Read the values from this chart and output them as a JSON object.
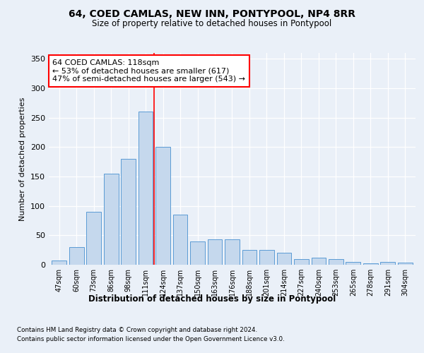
{
  "title1": "64, COED CAMLAS, NEW INN, PONTYPOOL, NP4 8RR",
  "title2": "Size of property relative to detached houses in Pontypool",
  "xlabel": "Distribution of detached houses by size in Pontypool",
  "ylabel": "Number of detached properties",
  "categories": [
    "47sqm",
    "60sqm",
    "73sqm",
    "86sqm",
    "98sqm",
    "111sqm",
    "124sqm",
    "137sqm",
    "150sqm",
    "163sqm",
    "176sqm",
    "188sqm",
    "201sqm",
    "214sqm",
    "227sqm",
    "240sqm",
    "253sqm",
    "265sqm",
    "278sqm",
    "291sqm",
    "304sqm"
  ],
  "values": [
    7,
    30,
    90,
    155,
    180,
    260,
    200,
    85,
    40,
    43,
    43,
    25,
    25,
    20,
    10,
    12,
    10,
    5,
    3,
    5,
    4
  ],
  "bar_color": "#c5d8ed",
  "bar_edge_color": "#5b9bd5",
  "vline_x_index": 5.5,
  "vline_color": "red",
  "annotation_text": "64 COED CAMLAS: 118sqm\n← 53% of detached houses are smaller (617)\n47% of semi-detached houses are larger (543) →",
  "annotation_box_facecolor": "white",
  "annotation_box_edgecolor": "red",
  "footnote1": "Contains HM Land Registry data © Crown copyright and database right 2024.",
  "footnote2": "Contains public sector information licensed under the Open Government Licence v3.0.",
  "bg_color": "#eaf0f8",
  "plot_bg_color": "#eaf0f8",
  "ylim": [
    0,
    360
  ],
  "yticks": [
    0,
    50,
    100,
    150,
    200,
    250,
    300,
    350
  ]
}
